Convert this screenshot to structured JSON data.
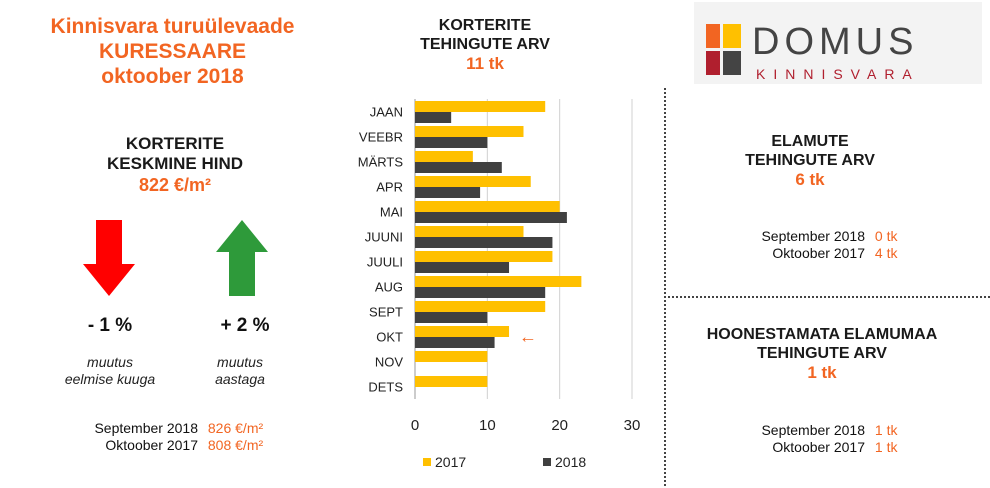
{
  "header": {
    "line1": "Kinnisvara turuülevaade",
    "line2": "KURESSAARE",
    "line3": "oktoober 2018"
  },
  "price": {
    "title_line1": "KORTERITE",
    "title_line2": "KESKMINE HIND",
    "value": "822 €/m²",
    "monthly_change": "- 1 %",
    "monthly_label_line1": "muutus",
    "monthly_label_line2": "eelmise kuuga",
    "yearly_change": "+ 2 %",
    "yearly_label_line1": "muutus",
    "yearly_label_line2": "aastaga",
    "compare": [
      {
        "label": "September 2018",
        "value": "826 €/m²"
      },
      {
        "label": "Oktoober 2017",
        "value": "808 €/m²"
      }
    ],
    "colors": {
      "down_arrow": "#ff0000",
      "up_arrow": "#2e9a3a"
    }
  },
  "apartments": {
    "title_line1": "KORTERITE",
    "title_line2": "TEHINGUTE ARV",
    "value": "11 tk"
  },
  "chart_data": {
    "type": "bar",
    "orientation": "horizontal",
    "categories": [
      "JAAN",
      "VEEBR",
      "MÄRTS",
      "APR",
      "MAI",
      "JUUNI",
      "JUULI",
      "AUG",
      "SEPT",
      "OKT",
      "NOV",
      "DETS"
    ],
    "series": [
      {
        "name": "2017",
        "color": "#ffc000",
        "values": [
          18,
          15,
          8,
          16,
          20,
          15,
          19,
          23,
          18,
          13,
          10,
          10
        ]
      },
      {
        "name": "2018",
        "color": "#404040",
        "values": [
          5,
          10,
          12,
          9,
          21,
          19,
          13,
          18,
          10,
          11,
          null,
          null
        ]
      }
    ],
    "xlim": [
      0,
      30
    ],
    "xticks": [
      0,
      10,
      20,
      30
    ],
    "grid": "vertical",
    "legend": "bottom",
    "annotation": {
      "category": "OKT",
      "symbol": "←",
      "color": "#f26522"
    }
  },
  "houses": {
    "title_line1": "ELAMUTE",
    "title_line2": "TEHINGUTE ARV",
    "value": "6 tk",
    "compare": [
      {
        "label": "September 2018",
        "value": "0 tk"
      },
      {
        "label": "Oktoober 2017",
        "value": "4 tk"
      }
    ]
  },
  "land": {
    "title_line1": "HOONESTAMATA ELAMUMAA",
    "title_line2": "TEHINGUTE ARV",
    "value": "1 tk",
    "compare": [
      {
        "label": "September 2018",
        "value": "1 tk"
      },
      {
        "label": "Oktoober 2017",
        "value": "1 tk"
      }
    ]
  },
  "logo": {
    "word": "DOMUS",
    "sub": "KINNISVARA",
    "colors": [
      "#f26522",
      "#ffc000",
      "#b01f2e",
      "#444444"
    ]
  }
}
